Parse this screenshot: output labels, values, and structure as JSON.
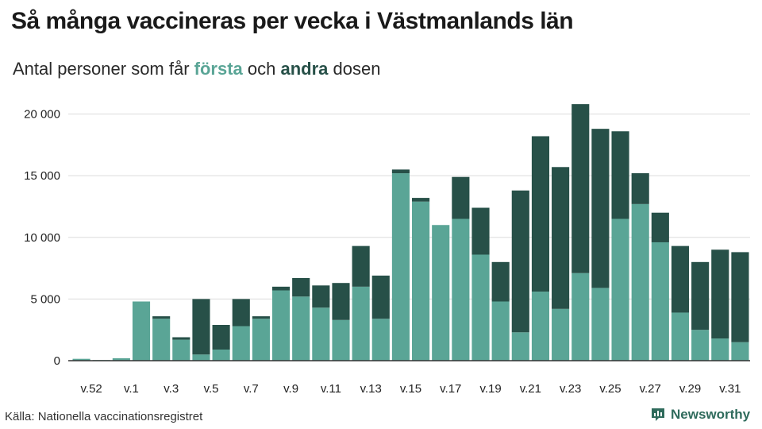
{
  "title": "Så många vaccineras per vecka i Västmanlands län",
  "subtitle": {
    "prefix": "Antal personer som får ",
    "first_label": "första",
    "middle": " och ",
    "second_label": "andra",
    "suffix": " dosen"
  },
  "source": "Källa: Nationella vaccinationsregistret",
  "brand": {
    "name": "Newsworthy",
    "icon": "chart-icon"
  },
  "colors": {
    "first_dose": "#5aa596",
    "second_dose": "#275048",
    "grid": "#dcdcdc",
    "baseline": "#333333"
  },
  "chart_data": {
    "type": "bar",
    "stacked": true,
    "categories": [
      "v.52",
      "v.53",
      "v.1",
      "v.2",
      "v.3",
      "v.4",
      "v.5",
      "v.6",
      "v.7",
      "v.8",
      "v.9",
      "v.10",
      "v.11",
      "v.12",
      "v.13",
      "v.14",
      "v.15",
      "v.16",
      "v.17",
      "v.18",
      "v.19",
      "v.20",
      "v.21",
      "v.22",
      "v.23",
      "v.24",
      "v.25",
      "v.26",
      "v.27",
      "v.28",
      "v.29",
      "v.30",
      "v.31",
      "v.32"
    ],
    "tick_labels": [
      "v.52",
      "",
      "v.1",
      "",
      "v.3",
      "",
      "v.5",
      "",
      "v.7",
      "",
      "v.9",
      "",
      "v.11",
      "",
      "v.13",
      "",
      "v.15",
      "",
      "v.17",
      "",
      "v.19",
      "",
      "v.21",
      "",
      "v.23",
      "",
      "v.25",
      "",
      "v.27",
      "",
      "v.29",
      "",
      "v.31",
      ""
    ],
    "series": [
      {
        "name": "första",
        "values": [
          150,
          50,
          200,
          4800,
          3400,
          1700,
          500,
          900,
          2800,
          3400,
          5700,
          5200,
          4300,
          3300,
          6000,
          3400,
          15200,
          12900,
          11000,
          11500,
          8600,
          4800,
          2300,
          5600,
          4200,
          7100,
          5900,
          11500,
          12700,
          9600,
          3900,
          2500,
          1800,
          1500
        ]
      },
      {
        "name": "andra",
        "values": [
          0,
          0,
          0,
          0,
          200,
          200,
          4500,
          2000,
          2200,
          200,
          300,
          1500,
          1800,
          3000,
          3300,
          3500,
          300,
          300,
          0,
          3400,
          3800,
          3200,
          11500,
          12600,
          11500,
          13700,
          12900,
          7100,
          2500,
          2400,
          5400,
          5500,
          7200,
          7300
        ]
      }
    ],
    "ylim": [
      0,
      21000
    ],
    "yticks": [
      0,
      5000,
      10000,
      15000,
      20000
    ],
    "ytick_labels": [
      "0",
      "5 000",
      "10 000",
      "15 000",
      "20 000"
    ],
    "grid": true,
    "legend": "in subtitle"
  }
}
